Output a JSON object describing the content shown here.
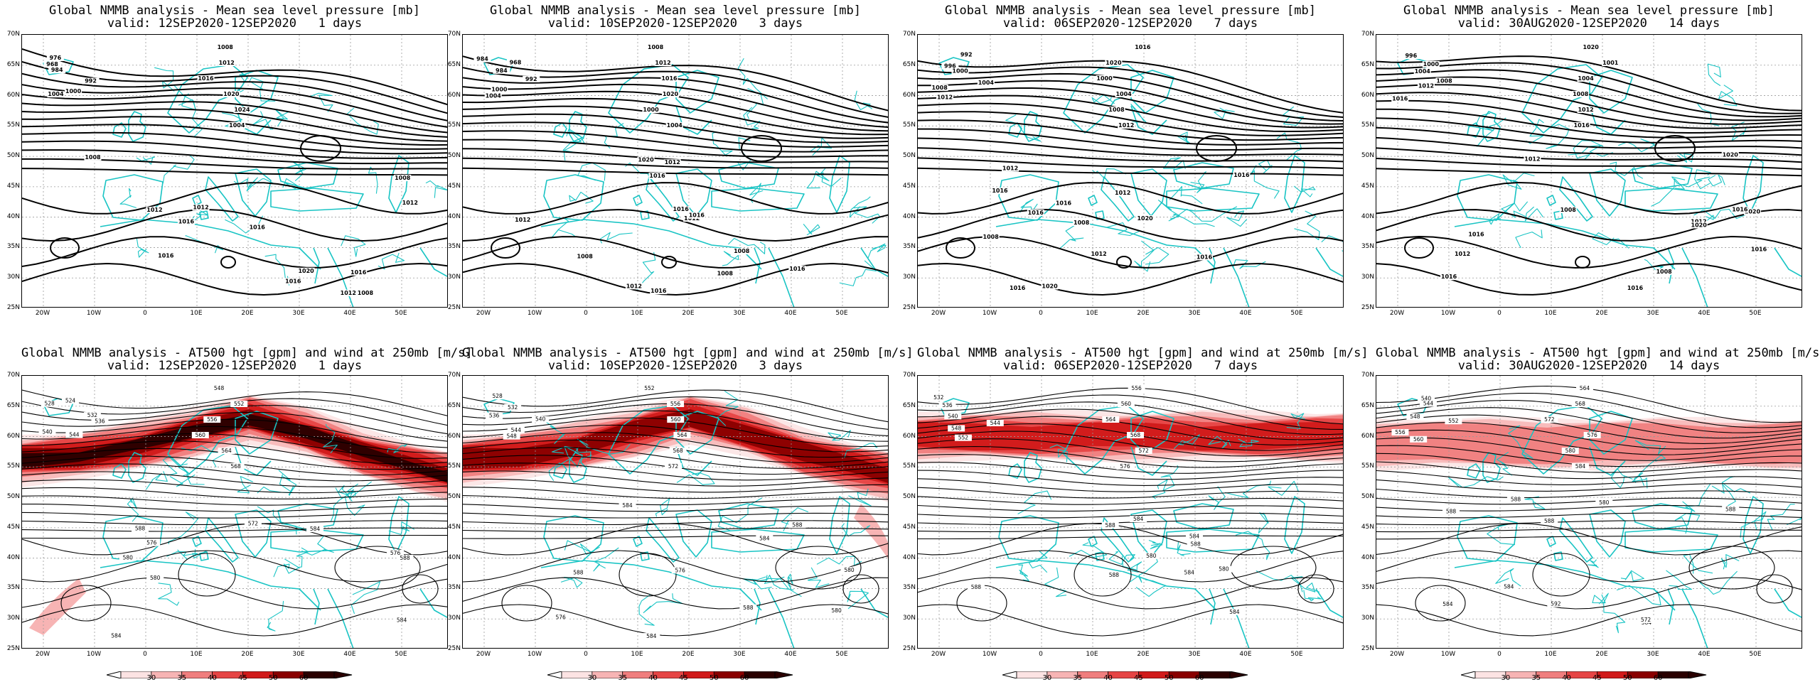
{
  "colors": {
    "coast": "#19c4c4",
    "contour": "#000000",
    "grid": "#9a9a9a",
    "jet": [
      "#fce3e3",
      "#f7b4b4",
      "#f07e7e",
      "#e64545",
      "#d11a1a",
      "#8a0000",
      "#2a0000"
    ]
  },
  "lat_labels": [
    "70N",
    "65N",
    "60N",
    "55N",
    "50N",
    "45N",
    "40N",
    "35N",
    "30N",
    "25N"
  ],
  "lon_labels": [
    "20W",
    "10W",
    "0",
    "10E",
    "20E",
    "30E",
    "40E",
    "50E"
  ],
  "colorbar": {
    "labels": [
      "30",
      "35",
      "40",
      "45",
      "50",
      "60"
    ]
  },
  "mslp_panels": [
    {
      "title": "Global NMMB analysis - Mean sea level pressure [mb]",
      "valid": "valid: 12SEP2020-12SEP2020   1 days",
      "labels": [
        "976",
        "968",
        "984",
        "992",
        "1000",
        "1004",
        "1008",
        "1012",
        "1016",
        "1020",
        "1024",
        "1004",
        "1008",
        "1012",
        "1016",
        "1020",
        "1016",
        "1012",
        "1008",
        "1012",
        "1008",
        "1012",
        "1016",
        "1016",
        "1016"
      ]
    },
    {
      "title": "Global NMMB analysis - Mean sea level pressure [mb]",
      "valid": "valid: 10SEP2020-12SEP2020   3 days",
      "labels": [
        "984",
        "968",
        "984",
        "992",
        "1000",
        "1004",
        "1008",
        "1012",
        "1016",
        "1020",
        "1000",
        "1004",
        "1008",
        "1012",
        "1016",
        "1020",
        "1016",
        "1012",
        "1008",
        "1012",
        "1008",
        "1012",
        "1016",
        "1016",
        "1016"
      ]
    },
    {
      "title": "Global NMMB analysis - Mean sea level pressure [mb]",
      "valid": "valid: 06SEP2020-12SEP2020   7 days",
      "labels": [
        "992",
        "996",
        "1000",
        "1004",
        "1008",
        "1012",
        "1016",
        "1020",
        "1000",
        "1004",
        "1008",
        "1012",
        "1016",
        "1020",
        "1020",
        "1016",
        "1012",
        "1008",
        "1012",
        "1008",
        "1012",
        "1016",
        "1016",
        "1016",
        "1016"
      ]
    },
    {
      "title": "Global NMMB analysis - Mean sea level pressure [mb]",
      "valid": "valid: 30AUG2020-12SEP2020   14 days",
      "labels": [
        "996",
        "1000",
        "1004",
        "1008",
        "1012",
        "1016",
        "1020",
        "1001",
        "1004",
        "1008",
        "1012",
        "1016",
        "1020",
        "1020",
        "1016",
        "1012",
        "1008",
        "1012",
        "1008",
        "1012",
        "1016",
        "1016",
        "1016",
        "1016",
        "1020"
      ]
    }
  ],
  "z500_panels": [
    {
      "title": "Global NMMB analysis - AT500 hgt [gpm] and wind at 250mb [m/s]",
      "valid": "valid: 12SEP2020-12SEP2020   1 days",
      "labels": [
        "524",
        "528",
        "532",
        "536",
        "540",
        "544",
        "548",
        "552",
        "556",
        "560",
        "564",
        "568",
        "572",
        "576",
        "580",
        "584",
        "588",
        "576",
        "580",
        "584",
        "588",
        "584"
      ]
    },
    {
      "title": "Global NMMB analysis - AT500 hgt [gpm] and wind at 250mb [m/s]",
      "valid": "valid: 10SEP2020-12SEP2020   3 days",
      "labels": [
        "528",
        "532",
        "536",
        "540",
        "544",
        "548",
        "552",
        "556",
        "560",
        "564",
        "568",
        "572",
        "576",
        "580",
        "584",
        "588",
        "576",
        "580",
        "584",
        "588",
        "584",
        "588"
      ]
    },
    {
      "title": "Global NMMB analysis - AT500 hgt [gpm] and wind at 250mb [m/s]",
      "valid": "valid: 06SEP2020-12SEP2020   7 days",
      "labels": [
        "532",
        "536",
        "540",
        "544",
        "548",
        "552",
        "556",
        "560",
        "564",
        "568",
        "572",
        "576",
        "580",
        "584",
        "588",
        "580",
        "584",
        "588",
        "584",
        "588",
        "584",
        "588"
      ]
    },
    {
      "title": "Global NMMB analysis - AT500 hgt [gpm] and wind at 250mb [m/s]",
      "valid": "valid: 30AUG2020-12SEP2020   14 days",
      "labels": [
        "540",
        "544",
        "548",
        "552",
        "556",
        "560",
        "564",
        "568",
        "572",
        "576",
        "580",
        "584",
        "588",
        "592",
        "580",
        "584",
        "588",
        "584",
        "588",
        "584",
        "588",
        "572"
      ]
    }
  ]
}
